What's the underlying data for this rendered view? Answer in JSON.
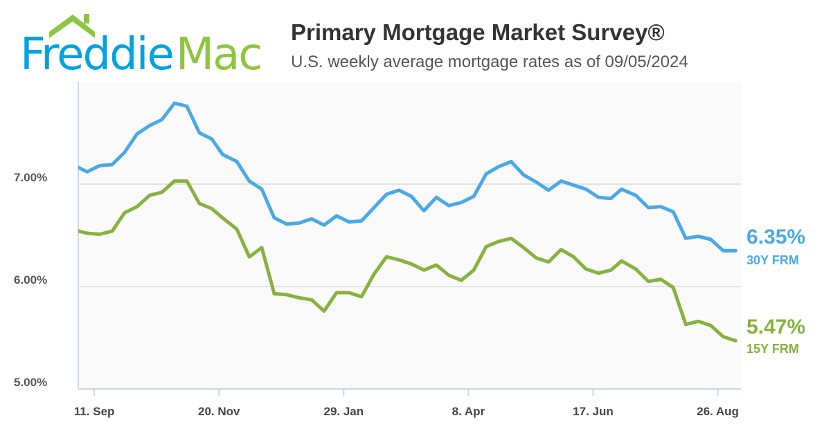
{
  "logo": {
    "word1": "Freddie",
    "word2": "Mac",
    "blue": "#00a3e0",
    "green": "#8dc63f",
    "icon": "house-roof-icon"
  },
  "header": {
    "title": "Primary Mortgage Market Survey®",
    "subtitle": "U.S. weekly average mortgage rates as of 09/05/2024"
  },
  "end_labels": {
    "s30": {
      "value": "6.35%",
      "name": "30Y FRM"
    },
    "s15": {
      "value": "5.47%",
      "name": "15Y FRM"
    }
  },
  "chart_data": {
    "type": "line",
    "title": "",
    "xlabel": "",
    "ylabel": "",
    "ylim": [
      5,
      8
    ],
    "xlim": [
      "2023-09-02",
      "2024-09-08"
    ],
    "grid": true,
    "yticks": [
      {
        "value": 5,
        "label": "5.00%"
      },
      {
        "value": 6,
        "label": "6.00%"
      },
      {
        "value": 7,
        "label": "7.00%"
      }
    ],
    "xticks": [
      {
        "date": "2023-09-11",
        "label": "11. Sep"
      },
      {
        "date": "2023-11-20",
        "label": "20. Nov"
      },
      {
        "date": "2024-01-29",
        "label": "29. Jan"
      },
      {
        "date": "2024-04-08",
        "label": "8. Apr"
      },
      {
        "date": "2024-06-17",
        "label": "17. Jun"
      },
      {
        "date": "2024-08-26",
        "label": "26. Aug"
      }
    ],
    "x": [
      "2023-08-31",
      "2023-09-07",
      "2023-09-14",
      "2023-09-21",
      "2023-09-28",
      "2023-10-05",
      "2023-10-12",
      "2023-10-19",
      "2023-10-26",
      "2023-11-02",
      "2023-11-09",
      "2023-11-16",
      "2023-11-22",
      "2023-11-30",
      "2023-12-07",
      "2023-12-14",
      "2023-12-21",
      "2023-12-28",
      "2024-01-04",
      "2024-01-11",
      "2024-01-18",
      "2024-01-25",
      "2024-02-01",
      "2024-02-08",
      "2024-02-15",
      "2024-02-22",
      "2024-02-29",
      "2024-03-07",
      "2024-03-14",
      "2024-03-21",
      "2024-03-28",
      "2024-04-04",
      "2024-04-11",
      "2024-04-18",
      "2024-04-25",
      "2024-05-02",
      "2024-05-09",
      "2024-05-16",
      "2024-05-23",
      "2024-05-30",
      "2024-06-06",
      "2024-06-13",
      "2024-06-20",
      "2024-06-27",
      "2024-07-03",
      "2024-07-11",
      "2024-07-18",
      "2024-07-25",
      "2024-08-01",
      "2024-08-08",
      "2024-08-15",
      "2024-08-22",
      "2024-08-29",
      "2024-09-05"
    ],
    "series": [
      {
        "name": "30Y FRM",
        "color": "#4aa9e8",
        "values": [
          7.18,
          7.12,
          7.18,
          7.19,
          7.31,
          7.49,
          7.57,
          7.63,
          7.79,
          7.76,
          7.5,
          7.44,
          7.29,
          7.22,
          7.03,
          6.95,
          6.67,
          6.61,
          6.62,
          6.66,
          6.6,
          6.69,
          6.63,
          6.64,
          6.77,
          6.9,
          6.94,
          6.88,
          6.74,
          6.87,
          6.79,
          6.82,
          6.88,
          7.1,
          7.17,
          7.22,
          7.09,
          7.02,
          6.94,
          7.03,
          6.99,
          6.95,
          6.87,
          6.86,
          6.95,
          6.89,
          6.77,
          6.78,
          6.73,
          6.47,
          6.49,
          6.46,
          6.35,
          6.35
        ]
      },
      {
        "name": "15Y FRM",
        "color": "#86b33f",
        "values": [
          6.55,
          6.52,
          6.51,
          6.54,
          6.72,
          6.78,
          6.89,
          6.92,
          7.03,
          7.03,
          6.81,
          6.76,
          6.67,
          6.56,
          6.29,
          6.38,
          5.93,
          5.92,
          5.89,
          5.87,
          5.76,
          5.94,
          5.94,
          5.9,
          6.12,
          6.29,
          6.26,
          6.22,
          6.16,
          6.21,
          6.11,
          6.06,
          6.16,
          6.39,
          6.44,
          6.47,
          6.38,
          6.28,
          6.24,
          6.36,
          6.29,
          6.17,
          6.13,
          6.16,
          6.25,
          6.17,
          6.05,
          6.07,
          5.99,
          5.63,
          5.66,
          5.62,
          5.51,
          5.47
        ]
      }
    ]
  }
}
